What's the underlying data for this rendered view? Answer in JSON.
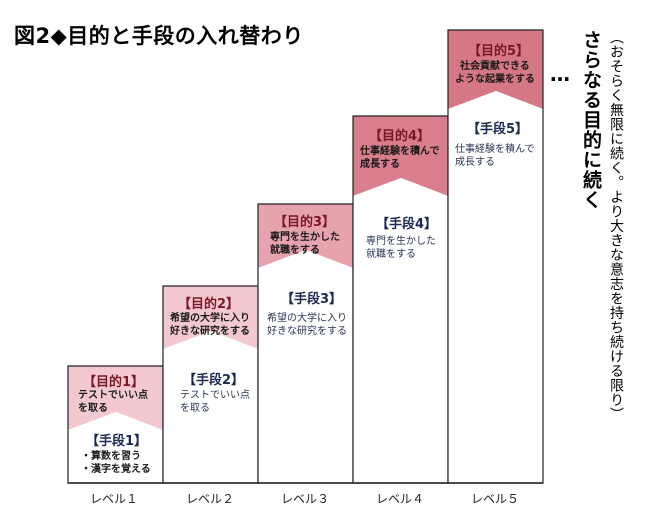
{
  "title": "図2◆目的と手段の入れ替わり",
  "colors": {
    "goal_light": "#f3c9cf",
    "goal_mid": "#e39aa5",
    "goal_dark": "#d67786",
    "outline": "#222222"
  },
  "steps": [
    {
      "level": "レベル１",
      "goal_label": "【目的1】",
      "goal_lines": [
        "テストでいい点",
        "を取る"
      ],
      "means_label": "【手段1】",
      "means_lines": [
        "・算数を習う",
        "・漢字を覚える"
      ]
    },
    {
      "level": "レベル２",
      "goal_label": "【目的2】",
      "goal_lines": [
        "希望の大学に入り",
        "好きな研究をする"
      ],
      "means_label": "【手段2】",
      "means_lines": [
        "テストでいい点",
        "を取る"
      ]
    },
    {
      "level": "レベル３",
      "goal_label": "【目的3】",
      "goal_lines": [
        "専門を生かした",
        "就職をする"
      ],
      "means_label": "【手段3】",
      "means_lines": [
        "希望の大学に入り",
        "好きな研究をする"
      ]
    },
    {
      "level": "レベル４",
      "goal_label": "【目的4】",
      "goal_lines": [
        "仕事経験を積んで",
        "成長する"
      ],
      "means_label": "【手段4】",
      "means_lines": [
        "専門を生かした",
        "就職をする"
      ]
    },
    {
      "level": "レベル５",
      "goal_label": "【目的5】",
      "goal_lines": [
        "社会貢献できる",
        "ような起業をする"
      ],
      "means_label": "【手段5】",
      "means_lines": [
        "仕事経験を積んで",
        "成長する"
      ]
    }
  ],
  "ellipsis": "…",
  "side_main": "さらなる目的に続く",
  "side_sub": "（おそらく無限に続く。より大きな意志を持ち続ける限り）"
}
